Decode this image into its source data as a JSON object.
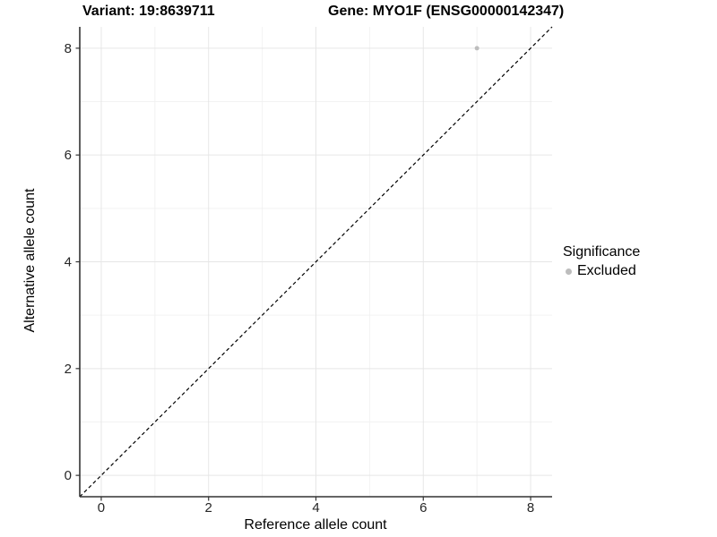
{
  "header": {
    "variant_title": "Variant: 19:8639711",
    "gene_title": "Gene: MYO1F (ENSG00000142347)"
  },
  "chart_data": {
    "type": "scatter",
    "title_left": "Variant: 19:8639711",
    "title_right": "Gene: MYO1F (ENSG00000142347)",
    "xlabel": "Reference allele count",
    "ylabel": "Alternative allele count",
    "xlim": [
      -0.4,
      8.4
    ],
    "ylim": [
      -0.4,
      8.4
    ],
    "xticks": [
      0,
      2,
      4,
      6,
      8
    ],
    "yticks": [
      0,
      2,
      4,
      6,
      8
    ],
    "xminor": [
      1,
      3,
      5,
      7
    ],
    "yminor": [
      1,
      3,
      5,
      7
    ],
    "grid": "on",
    "points": [
      {
        "x": 7,
        "y": 8,
        "significance": "Excluded"
      }
    ],
    "identity_line": {
      "slope": 1,
      "intercept": 0,
      "style": "dashed"
    },
    "legend": {
      "position": "right",
      "title": "Significance",
      "items": [
        {
          "label": "Excluded",
          "color": "#bdbdbd"
        }
      ]
    }
  },
  "colors": {
    "background": "#ffffff",
    "point": "#bdbdbd",
    "grid_major": "#e6e6e6",
    "grid_minor": "#f2f2f2",
    "axis_line": "#333333",
    "tick_text": "#262626",
    "identity_line": "#000000",
    "title_text": "#000000"
  }
}
